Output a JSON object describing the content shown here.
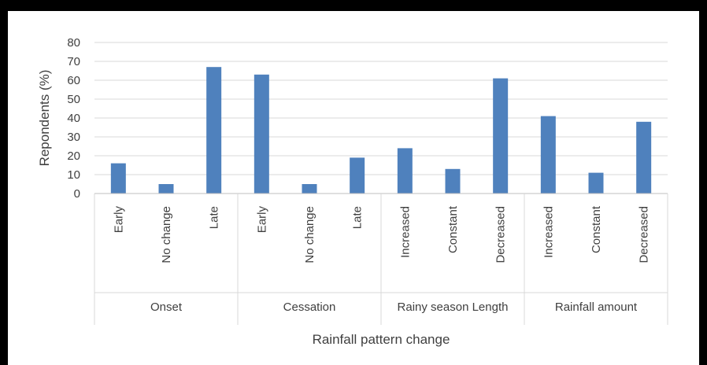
{
  "chart_data": {
    "type": "bar",
    "ylabel": "Repondents (%)",
    "xlabel": "Rainfall pattern change",
    "ylim": [
      0,
      80
    ],
    "yticks": [
      0,
      10,
      20,
      30,
      40,
      50,
      60,
      70,
      80
    ],
    "grid": true,
    "legend": "none",
    "bar_color": "#4f81bd",
    "groups": [
      {
        "name": "Onset",
        "categories": [
          "Early",
          "No change",
          "Late"
        ],
        "values": [
          16,
          5,
          67
        ]
      },
      {
        "name": "Cessation",
        "categories": [
          "Early",
          "No change",
          "Late"
        ],
        "values": [
          63,
          5,
          19
        ]
      },
      {
        "name": "Rainy season Length",
        "categories": [
          "Increased",
          "Constant",
          "Decreased"
        ],
        "values": [
          24,
          13,
          61
        ]
      },
      {
        "name": "Rainfall amount",
        "categories": [
          "Increased",
          "Constant",
          "Decreased"
        ],
        "values": [
          41,
          11,
          38
        ]
      }
    ]
  }
}
